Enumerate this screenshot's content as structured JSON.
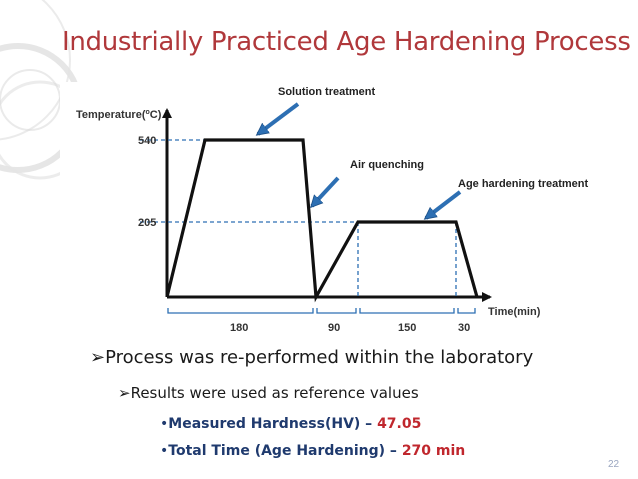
{
  "slide": {
    "title": "Industrially Practiced Age Hardening Process",
    "page_number": "22"
  },
  "diagram": {
    "y_axis_label": "Temperature(",
    "y_axis_unit": "o",
    "y_axis_label_end": "C)",
    "x_axis_label": "Time(min)",
    "temperature_ticks": [
      "540",
      "205"
    ],
    "duration_labels": [
      "180",
      "90",
      "150",
      "30"
    ],
    "callouts": {
      "solution_treatment": "Solution treatment",
      "air_quenching": "Air quenching",
      "age_hardening_treatment": "Age hardening treatment"
    }
  },
  "bullets": {
    "main": "Process was re-performed within the laboratory",
    "sub": "Results were used as reference values",
    "hardness_label": "Measured Hardness(HV) – ",
    "hardness_value": "47.05",
    "time_label": "Total Time (Age Hardening) – ",
    "time_value": "270 min"
  },
  "colors": {
    "title": "#b0383b",
    "accent_blue": "#1f3a6e",
    "value_red": "#c0272d",
    "arrow_blue": "#2d6fb3"
  }
}
